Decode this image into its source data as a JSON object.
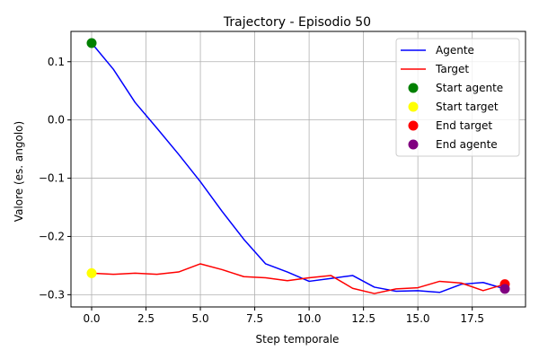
{
  "chart_data": {
    "type": "line",
    "title": "Trajectory - Episodio 50",
    "xlabel": "Step temporale",
    "ylabel": "Valore (es. angolo)",
    "xlim": [
      -0.95,
      19.95
    ],
    "ylim": [
      -0.321,
      0.152
    ],
    "xticks": [
      0.0,
      2.5,
      5.0,
      7.5,
      10.0,
      12.5,
      15.0,
      17.5
    ],
    "xtick_labels": [
      "0.0",
      "2.5",
      "5.0",
      "7.5",
      "10.0",
      "12.5",
      "15.0",
      "17.5"
    ],
    "yticks": [
      0.1,
      0.0,
      -0.1,
      -0.2,
      -0.3
    ],
    "ytick_labels": [
      "0.1",
      "0.0",
      "−0.1",
      "−0.2",
      "−0.3"
    ],
    "grid": true,
    "legend_position": "top-right",
    "x": [
      0,
      1,
      2,
      3,
      4,
      5,
      6,
      7,
      8,
      9,
      10,
      11,
      12,
      13,
      14,
      15,
      16,
      17,
      18,
      19
    ],
    "series": [
      {
        "name": "Agente",
        "color": "#0000ff",
        "values": [
          0.132,
          0.087,
          0.03,
          -0.014,
          -0.059,
          -0.106,
          -0.157,
          -0.205,
          -0.247,
          -0.261,
          -0.277,
          -0.272,
          -0.267,
          -0.287,
          -0.294,
          -0.293,
          -0.296,
          -0.282,
          -0.279,
          -0.29
        ]
      },
      {
        "name": "Target",
        "color": "#ff0000",
        "values": [
          -0.263,
          -0.265,
          -0.263,
          -0.265,
          -0.261,
          -0.247,
          -0.257,
          -0.269,
          -0.271,
          -0.276,
          -0.271,
          -0.267,
          -0.289,
          -0.298,
          -0.29,
          -0.288,
          -0.277,
          -0.28,
          -0.293,
          -0.282
        ]
      }
    ],
    "markers": [
      {
        "name": "Start agente",
        "color": "#008000",
        "x": 0,
        "y": 0.132
      },
      {
        "name": "Start target",
        "color": "#ffff00",
        "x": 0,
        "y": -0.263
      },
      {
        "name": "End target",
        "color": "#ff0000",
        "x": 19,
        "y": -0.282
      },
      {
        "name": "End agente",
        "color": "#800080",
        "x": 19,
        "y": -0.29
      }
    ]
  }
}
